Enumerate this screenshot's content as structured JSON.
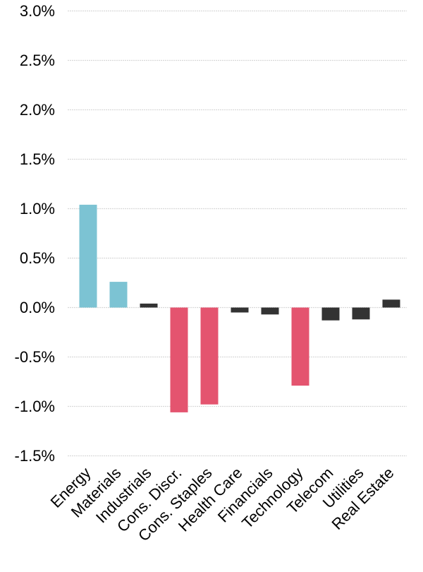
{
  "chart_data": {
    "type": "bar",
    "title": "",
    "xlabel": "",
    "ylabel": "",
    "value_suffix": "%",
    "categories": [
      "Energy",
      "Materials",
      "Industrials",
      "Cons. Discr.",
      "Cons. Staples",
      "Health Care",
      "Financials",
      "Technology",
      "Telecom",
      "Utilities",
      "Real Estate"
    ],
    "values": [
      1.04,
      0.26,
      0.04,
      -1.06,
      -0.98,
      -0.05,
      -0.07,
      -0.79,
      -0.13,
      -0.12,
      0.08
    ],
    "bar_colors": [
      "#7CC3D3",
      "#7CC3D3",
      "#333333",
      "#E4546F",
      "#E4546F",
      "#333333",
      "#333333",
      "#E4546F",
      "#333333",
      "#333333",
      "#333333"
    ],
    "ylim": [
      -1.5,
      3.0
    ],
    "ytick_step": 0.5,
    "ytick_labels": [
      "3.0%",
      "2.5%",
      "2.0%",
      "1.5%",
      "1.0%",
      "0.5%",
      "0.0%",
      "-0.5%",
      "-1.0%",
      "-1.5%"
    ],
    "ytick_values": [
      3.0,
      2.5,
      2.0,
      1.5,
      1.0,
      0.5,
      0.0,
      -0.5,
      -1.0,
      -1.5
    ],
    "grid": true,
    "legend": false,
    "x_label_rotation_deg": 45,
    "colors": {
      "positive_highlight": "#7CC3D3",
      "negative_highlight": "#E4546F",
      "neutral_bar": "#333333",
      "gridline": "#D9D9D9",
      "axis_text": "#000000",
      "background": "#FFFFFF"
    }
  }
}
